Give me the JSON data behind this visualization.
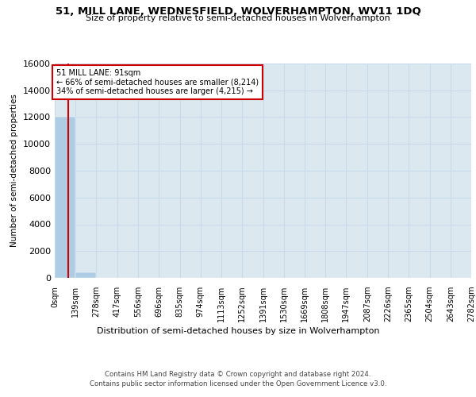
{
  "title": "51, MILL LANE, WEDNESFIELD, WOLVERHAMPTON, WV11 1DQ",
  "subtitle": "Size of property relative to semi-detached houses in Wolverhampton",
  "xlabel": "Distribution of semi-detached houses by size in Wolverhampton",
  "ylabel": "Number of semi-detached properties",
  "property_size": 91,
  "annotation_line1": "51 MILL LANE: 91sqm",
  "annotation_line2": "← 66% of semi-detached houses are smaller (8,214)",
  "annotation_line3": "34% of semi-detached houses are larger (4,215) →",
  "bin_edges": [
    0,
    139,
    278,
    417,
    556,
    696,
    835,
    974,
    1113,
    1252,
    1391,
    1530,
    1669,
    1808,
    1947,
    2087,
    2226,
    2365,
    2504,
    2643,
    2782
  ],
  "bin_heights": [
    12050,
    430,
    5,
    2,
    1,
    0,
    0,
    0,
    0,
    0,
    0,
    0,
    0,
    0,
    0,
    0,
    0,
    0,
    0,
    0
  ],
  "bar_color": "#aecde4",
  "line_color": "#cc0000",
  "annotation_box_edge_color": "#cc0000",
  "annotation_box_fill": "#ffffff",
  "grid_color": "#c8daea",
  "background_color": "#dce8f0",
  "ylim": [
    0,
    16000
  ],
  "yticks": [
    0,
    2000,
    4000,
    6000,
    8000,
    10000,
    12000,
    14000,
    16000
  ],
  "footer_line1": "Contains HM Land Registry data © Crown copyright and database right 2024.",
  "footer_line2": "Contains public sector information licensed under the Open Government Licence v3.0."
}
